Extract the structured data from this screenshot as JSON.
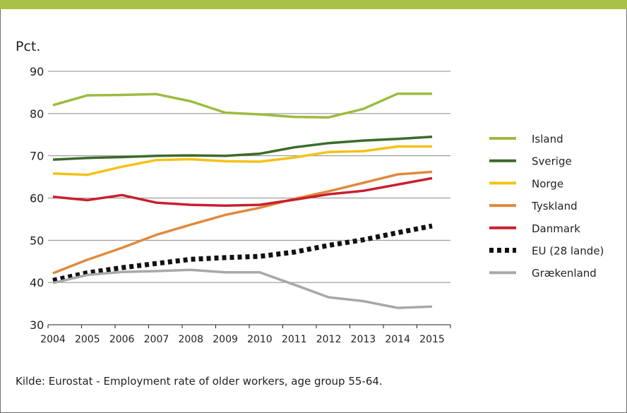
{
  "chart_data": {
    "type": "line",
    "ylabel": "Pct.",
    "ylim": [
      30,
      90
    ],
    "yticks": [
      30,
      40,
      50,
      60,
      70,
      80,
      90
    ],
    "grid": true,
    "legend_position": "right",
    "x": [
      "2004",
      "2005",
      "2006",
      "2007",
      "2008",
      "2009",
      "2010",
      "2011",
      "2012",
      "2013",
      "2014",
      "2015"
    ],
    "series": [
      {
        "name": "Island",
        "color": "#9dbb3f",
        "style": "solid",
        "values": [
          82.0,
          84.3,
          84.4,
          84.6,
          82.9,
          80.2,
          79.8,
          79.2,
          79.1,
          81.1,
          84.7,
          84.7
        ]
      },
      {
        "name": "Sverige",
        "color": "#3c6b28",
        "style": "solid",
        "values": [
          69.1,
          69.5,
          69.7,
          70.0,
          70.1,
          70.0,
          70.5,
          72.0,
          73.0,
          73.6,
          74.0,
          74.5
        ]
      },
      {
        "name": "Norge",
        "color": "#f3c218",
        "style": "solid",
        "values": [
          65.8,
          65.5,
          67.4,
          69.0,
          69.2,
          68.7,
          68.6,
          69.6,
          70.9,
          71.1,
          72.2,
          72.2
        ]
      },
      {
        "name": "Tyskland",
        "color": "#e08a3c",
        "style": "solid",
        "values": [
          42.2,
          45.4,
          48.2,
          51.3,
          53.7,
          56.0,
          57.7,
          59.8,
          61.6,
          63.6,
          65.6,
          66.2
        ]
      },
      {
        "name": "Danmark",
        "color": "#c8202e",
        "style": "solid",
        "values": [
          60.3,
          59.5,
          60.7,
          58.9,
          58.4,
          58.2,
          58.4,
          59.6,
          60.9,
          61.7,
          63.2,
          64.7
        ]
      },
      {
        "name": "EU (28 lande)",
        "color": "#111111",
        "style": "dotted",
        "values": [
          40.5,
          42.3,
          43.5,
          44.5,
          45.5,
          45.9,
          46.2,
          47.2,
          48.8,
          50.1,
          51.8,
          53.4
        ]
      },
      {
        "name": "Grækenland",
        "color": "#a8a8aa",
        "style": "solid",
        "values": [
          39.9,
          41.8,
          42.5,
          42.7,
          43.0,
          42.4,
          42.4,
          39.5,
          36.5,
          35.6,
          34.0,
          34.3
        ]
      }
    ]
  },
  "source_text": "Kilde: Eurostat - Employment rate of older workers, age group 55-64."
}
